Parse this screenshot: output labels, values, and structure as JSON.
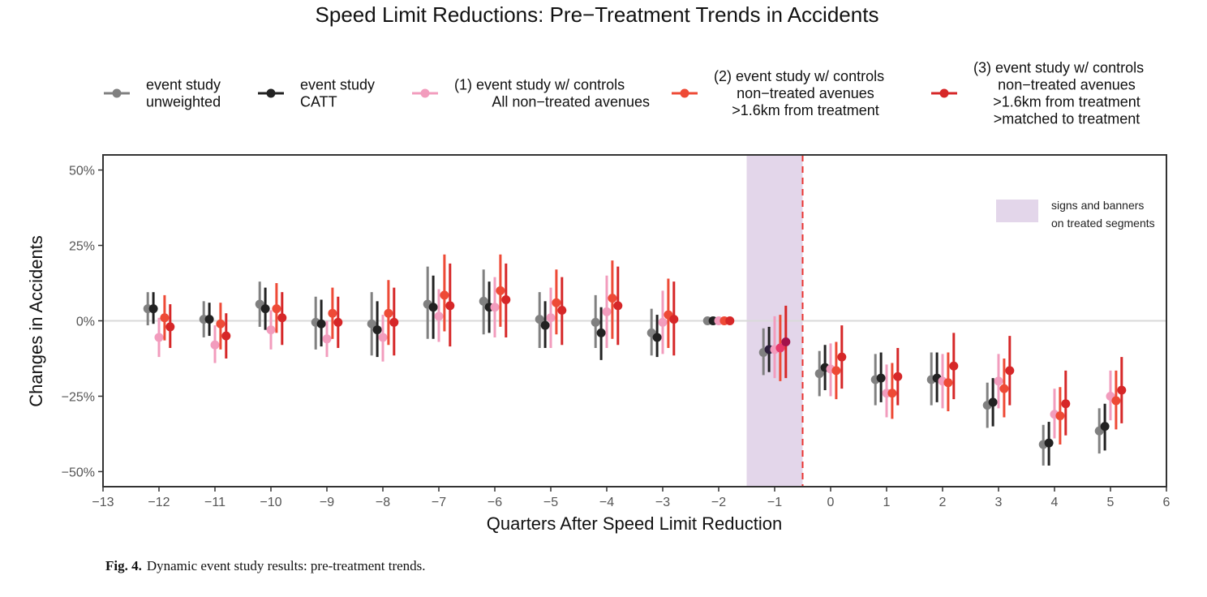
{
  "caption": {
    "label": "Fig. 4.",
    "text": "Dynamic event study results: pre-treatment trends."
  },
  "chart_data": {
    "type": "scatter",
    "title": "Speed Limit Reductions:  Pre−Treatment Trends in Accidents",
    "xlabel": "Quarters After Speed Limit Reduction",
    "ylabel": "Changes in Accidents",
    "xlim": [
      -13,
      6
    ],
    "ylim": [
      -55,
      55
    ],
    "x_ticks": [
      -13,
      -12,
      -11,
      -10,
      -9,
      -8,
      -7,
      -6,
      -5,
      -4,
      -3,
      -2,
      -1,
      0,
      1,
      2,
      3,
      4,
      5,
      6
    ],
    "x_tick_labels": [
      "−13",
      "−12",
      "−11",
      "−10",
      "−9",
      "−8",
      "−7",
      "−6",
      "−5",
      "−4",
      "−3",
      "−2",
      "−1",
      "0",
      "1",
      "2",
      "3",
      "4",
      "5",
      "6"
    ],
    "y_ticks": [
      50,
      25,
      0,
      -25,
      -50
    ],
    "y_tick_labels": [
      "50%",
      "25%",
      "0%",
      "−25%",
      "−50%"
    ],
    "reference_line_y": 0,
    "treatment_line_x": -0.5,
    "shaded_region": {
      "from": -1.5,
      "to": -0.5,
      "color": "#e3d6ea",
      "label_lines": [
        "signs and banners",
        "on treated segments"
      ]
    },
    "grid": false,
    "legend_position": "top",
    "x": [
      -12,
      -11,
      -10,
      -9,
      -8,
      -7,
      -6,
      -5,
      -4,
      -3,
      -2,
      -1,
      0,
      1,
      2,
      3,
      4,
      5
    ],
    "series": [
      {
        "label_lines": [
          "event study",
          "unweighted"
        ],
        "color": "#808080",
        "offset": -0.2,
        "values": [
          4,
          0.5,
          5.5,
          -0.5,
          -1,
          5.5,
          6.5,
          0.5,
          -0.5,
          -4,
          0,
          -10.5,
          -17.5,
          -19.5,
          -19.5,
          -28,
          -41,
          -36.5
        ],
        "ci": [
          [
            -1.5,
            9.5
          ],
          [
            -5.5,
            6.5
          ],
          [
            -2,
            13
          ],
          [
            -9.5,
            8
          ],
          [
            -11.5,
            9.5
          ],
          [
            -6,
            18
          ],
          [
            -4.5,
            17
          ],
          [
            -9,
            9.5
          ],
          [
            -9,
            8.5
          ],
          [
            -11.5,
            4
          ],
          [
            0,
            0
          ],
          [
            -18,
            -2.5
          ],
          [
            -25,
            -10
          ],
          [
            -28,
            -11
          ],
          [
            -28,
            -10.5
          ],
          [
            -35.5,
            -20.5
          ],
          [
            -48,
            -34.5
          ],
          [
            -44,
            -29
          ]
        ]
      },
      {
        "label_lines": [
          "event study",
          "CATT"
        ],
        "color": "#222222",
        "offset": -0.1,
        "values": [
          4,
          0.5,
          4,
          -1,
          -3,
          4.5,
          4.5,
          -1.5,
          -4,
          -5.5,
          0,
          -9.5,
          -15.5,
          -19,
          -19,
          -27,
          -40.5,
          -35
        ],
        "ci": [
          [
            -1,
            9.5
          ],
          [
            -5,
            6
          ],
          [
            -3,
            11
          ],
          [
            -8.5,
            7
          ],
          [
            -12,
            6.5
          ],
          [
            -6,
            15
          ],
          [
            -4,
            13
          ],
          [
            -9,
            6.5
          ],
          [
            -13,
            4.5
          ],
          [
            -12,
            2
          ],
          [
            0,
            0
          ],
          [
            -17,
            -2
          ],
          [
            -23,
            -8
          ],
          [
            -27,
            -10.5
          ],
          [
            -27,
            -10.5
          ],
          [
            -35,
            -19
          ],
          [
            -48,
            -33.5
          ],
          [
            -43,
            -27.5
          ]
        ]
      },
      {
        "label_lines": [
          "(1) event study w/ controls",
          "All non−treated avenues"
        ],
        "color": "#f29cbd",
        "offset": 0,
        "values": [
          -5.5,
          -8,
          -3,
          -6,
          -5.5,
          1.5,
          4.5,
          1,
          3,
          -0.5,
          0,
          -9.5,
          -16,
          -24,
          -20,
          -20,
          -31,
          -25
        ],
        "ci": [
          [
            -12,
            1
          ],
          [
            -14,
            -1.5
          ],
          [
            -9.5,
            3.5
          ],
          [
            -12,
            0
          ],
          [
            -13.5,
            2
          ],
          [
            -7,
            10.5
          ],
          [
            -5.5,
            14.5
          ],
          [
            -9,
            11
          ],
          [
            -9,
            15
          ],
          [
            -11,
            10
          ],
          [
            0,
            0
          ],
          [
            -19,
            1.5
          ],
          [
            -25,
            -7.5
          ],
          [
            -32,
            -14.5
          ],
          [
            -29,
            -11
          ],
          [
            -29,
            -11
          ],
          [
            -39,
            -22.5
          ],
          [
            -33,
            -16.5
          ]
        ]
      },
      {
        "label_lines": [
          "(2) event study w/ controls",
          "non−treated avenues",
          ">1.6km from treatment"
        ],
        "color": "#ee4a36",
        "offset": 0.1,
        "values": [
          1,
          -1,
          4,
          2.5,
          2.5,
          8.5,
          10,
          6,
          7.5,
          2,
          0,
          -9,
          -16.5,
          -24,
          -20.5,
          -22.5,
          -31.5,
          -26.5
        ],
        "ci": [
          [
            -6.5,
            8.5
          ],
          [
            -9.5,
            6
          ],
          [
            -4,
            12.5
          ],
          [
            -6,
            11
          ],
          [
            -8,
            13.5
          ],
          [
            -3.5,
            22
          ],
          [
            -2,
            22
          ],
          [
            -4.5,
            17
          ],
          [
            -6,
            20
          ],
          [
            -9,
            14
          ],
          [
            0,
            0
          ],
          [
            -20,
            2
          ],
          [
            -26,
            -7
          ],
          [
            -32.5,
            -14
          ],
          [
            -30,
            -10.5
          ],
          [
            -32,
            -12.5
          ],
          [
            -41,
            -22
          ],
          [
            -36,
            -16.5
          ]
        ]
      },
      {
        "label_lines": [
          "(3) event study w/ controls",
          "non−treated avenues",
          ">1.6km from treatment",
          ">matched to treatment"
        ],
        "color": "#d62728",
        "offset": 0.2,
        "values": [
          -2,
          -5,
          1,
          -0.5,
          -0.5,
          5,
          7,
          3.5,
          5,
          0.5,
          0,
          -7,
          -12,
          -18.5,
          -15,
          -16.5,
          -27.5,
          -23
        ],
        "ci": [
          [
            -9,
            5.5
          ],
          [
            -12.5,
            2.5
          ],
          [
            -8,
            9.5
          ],
          [
            -9,
            8
          ],
          [
            -11.5,
            11
          ],
          [
            -8.5,
            19
          ],
          [
            -5.5,
            19
          ],
          [
            -8,
            14.5
          ],
          [
            -8,
            18
          ],
          [
            -11.5,
            13
          ],
          [
            0,
            0
          ],
          [
            -19,
            5
          ],
          [
            -22.5,
            -1.5
          ],
          [
            -28,
            -9
          ],
          [
            -26,
            -4
          ],
          [
            -28,
            -5
          ],
          [
            -38,
            -16.5
          ],
          [
            -34,
            -12
          ]
        ]
      }
    ],
    "final_dot_colors_q_minus1": [
      "#808080",
      "#2e1e3c",
      "#f29cbd",
      "#e8386a",
      "#a3124a"
    ]
  }
}
